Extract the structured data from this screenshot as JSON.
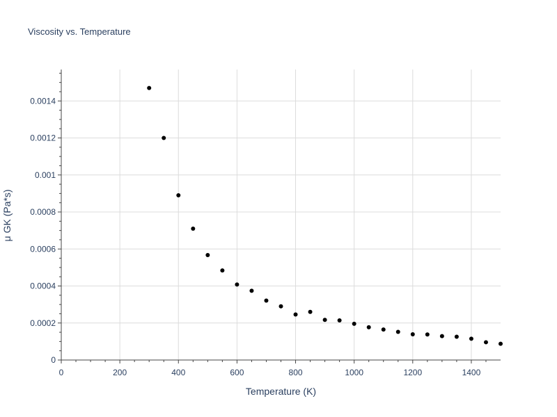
{
  "chart_data": {
    "type": "scatter",
    "title": "Viscosity vs. Temperature",
    "xlabel": "Temperature (K)",
    "ylabel": "μ GK (Pa*s)",
    "xlim": [
      0,
      1500
    ],
    "ylim": [
      0,
      0.00157
    ],
    "x_ticks": [
      0,
      200,
      400,
      600,
      800,
      1000,
      1200,
      1400
    ],
    "x_tick_labels": [
      "0",
      "200",
      "400",
      "600",
      "800",
      "1000",
      "1200",
      "1400"
    ],
    "y_ticks": [
      0,
      0.0002,
      0.0004,
      0.0006,
      0.0008,
      0.001,
      0.0012,
      0.0014
    ],
    "y_tick_labels": [
      "0",
      "0.0002",
      "0.0004",
      "0.0006",
      "0.0008",
      "0.001",
      "0.0012",
      "0.0014"
    ],
    "grid": true,
    "marker_color": "#000000",
    "series": [
      {
        "name": "μ GK",
        "x": [
          300,
          350,
          400,
          450,
          500,
          550,
          600,
          650,
          700,
          750,
          800,
          850,
          900,
          950,
          1000,
          1050,
          1100,
          1150,
          1200,
          1250,
          1300,
          1350,
          1400,
          1450,
          1500
        ],
        "y": [
          0.00147,
          0.0012,
          0.00089,
          0.00071,
          0.000567,
          0.000484,
          0.000408,
          0.000374,
          0.000321,
          0.00029,
          0.000246,
          0.00026,
          0.000217,
          0.000214,
          0.000196,
          0.000177,
          0.000165,
          0.000152,
          0.000139,
          0.000138,
          0.000129,
          0.000126,
          0.000115,
          9.6e-05,
          8.8e-05
        ]
      }
    ]
  }
}
